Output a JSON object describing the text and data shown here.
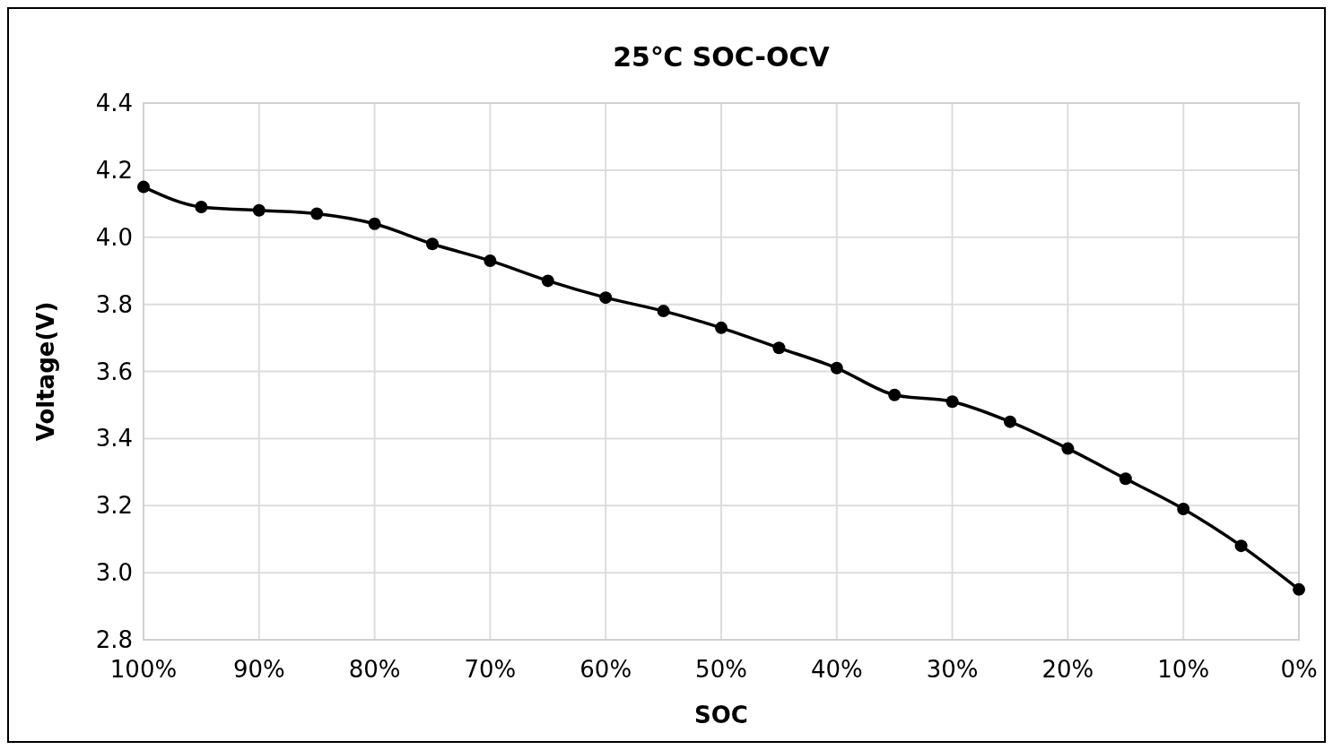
{
  "chart_data": {
    "type": "line",
    "title": "25℃ SOC-OCV",
    "xlabel": "SOC",
    "ylabel": "Voltage(V)",
    "x": [
      100,
      95,
      90,
      85,
      80,
      75,
      70,
      65,
      60,
      55,
      50,
      45,
      40,
      35,
      30,
      25,
      20,
      15,
      10,
      5,
      0
    ],
    "series": [
      {
        "color": "#000000",
        "values": [
          4.15,
          4.09,
          4.08,
          4.07,
          4.04,
          3.98,
          3.93,
          3.87,
          3.82,
          3.78,
          3.73,
          3.67,
          3.61,
          3.53,
          3.51,
          3.45,
          3.37,
          3.28,
          3.19,
          3.08,
          2.95
        ]
      }
    ],
    "xlim": [
      100,
      0
    ],
    "xticks": [
      {
        "value": 100,
        "label": "100%"
      },
      {
        "value": 90,
        "label": "90%"
      },
      {
        "value": 80,
        "label": "80%"
      },
      {
        "value": 70,
        "label": "70%"
      },
      {
        "value": 60,
        "label": "60%"
      },
      {
        "value": 50,
        "label": "50%"
      },
      {
        "value": 40,
        "label": "40%"
      },
      {
        "value": 30,
        "label": "30%"
      },
      {
        "value": 20,
        "label": "20%"
      },
      {
        "value": 10,
        "label": "10%"
      },
      {
        "value": 0,
        "label": "0%"
      }
    ],
    "ylim": [
      2.8,
      4.4
    ],
    "yticks": [
      {
        "value": 2.8,
        "label": "2.8"
      },
      {
        "value": 3.0,
        "label": "3.0"
      },
      {
        "value": 3.2,
        "label": "3.2"
      },
      {
        "value": 3.4,
        "label": "3.4"
      },
      {
        "value": 3.6,
        "label": "3.6"
      },
      {
        "value": 3.8,
        "label": "3.8"
      },
      {
        "value": 4.0,
        "label": "4.0"
      },
      {
        "value": 4.2,
        "label": "4.2"
      },
      {
        "value": 4.4,
        "label": "4.4"
      }
    ],
    "grid": true,
    "marker": "circle",
    "line_style": "solid"
  }
}
